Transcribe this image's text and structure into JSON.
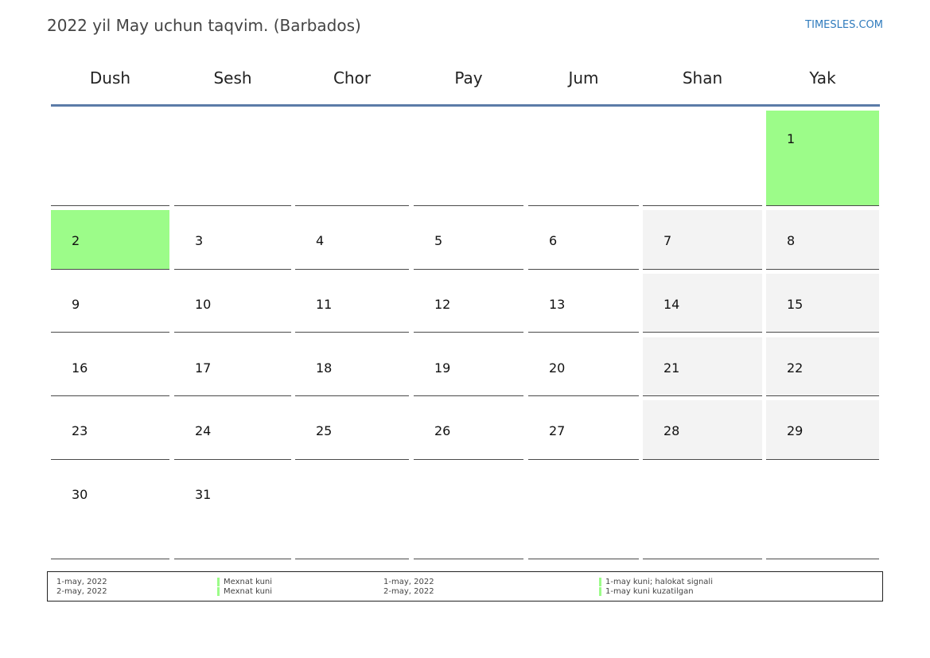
{
  "title": "2022 yil May uchun taqvim. (Barbados)",
  "brand": "TIMESLES.COM",
  "weekdays": [
    "Dush",
    "Sesh",
    "Chor",
    "Pay",
    "Jum",
    "Shan",
    "Yak"
  ],
  "weeks": [
    [
      "",
      "",
      "",
      "",
      "",
      "",
      "1"
    ],
    [
      "2",
      "3",
      "4",
      "5",
      "6",
      "7",
      "8"
    ],
    [
      "9",
      "10",
      "11",
      "12",
      "13",
      "14",
      "15"
    ],
    [
      "16",
      "17",
      "18",
      "19",
      "20",
      "21",
      "22"
    ],
    [
      "23",
      "24",
      "25",
      "26",
      "27",
      "28",
      "29"
    ],
    [
      "30",
      "31",
      "",
      "",
      "",
      "",
      ""
    ]
  ],
  "holiday_days": [
    "1",
    "2"
  ],
  "colors": {
    "holiday": "#9cfc89",
    "weekend": "#f3f3f3",
    "header_rule": "#5b7ba8",
    "brand": "#2f7bbd"
  },
  "legend": {
    "left": [
      {
        "date": "1-may, 2022",
        "name": "Mexnat kuni"
      },
      {
        "date": "2-may, 2022",
        "name": "Mexnat kuni"
      }
    ],
    "right": [
      {
        "date": "1-may, 2022",
        "name": "1-may kuni; halokat signali"
      },
      {
        "date": "2-may, 2022",
        "name": "1-may kuni kuzatilgan"
      }
    ]
  }
}
